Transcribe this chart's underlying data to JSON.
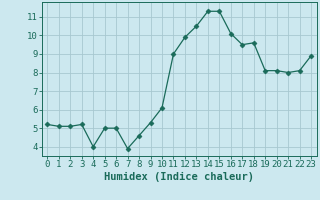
{
  "x": [
    0,
    1,
    2,
    3,
    4,
    5,
    6,
    7,
    8,
    9,
    10,
    11,
    12,
    13,
    14,
    15,
    16,
    17,
    18,
    19,
    20,
    21,
    22,
    23
  ],
  "y": [
    5.2,
    5.1,
    5.1,
    5.2,
    4.0,
    5.0,
    5.0,
    3.9,
    4.6,
    5.3,
    6.1,
    9.0,
    9.9,
    10.5,
    11.3,
    11.3,
    10.1,
    9.5,
    9.6,
    8.1,
    8.1,
    8.0,
    8.1,
    8.9
  ],
  "line_color": "#1a6b5a",
  "marker": "D",
  "marker_size": 2.5,
  "bg_color": "#cce8ef",
  "grid_color": "#a8c8d0",
  "xlabel": "Humidex (Indice chaleur)",
  "ylim": [
    3.5,
    11.8
  ],
  "xlim": [
    -0.5,
    23.5
  ],
  "yticks": [
    4,
    5,
    6,
    7,
    8,
    9,
    10,
    11
  ],
  "xticks": [
    0,
    1,
    2,
    3,
    4,
    5,
    6,
    7,
    8,
    9,
    10,
    11,
    12,
    13,
    14,
    15,
    16,
    17,
    18,
    19,
    20,
    21,
    22,
    23
  ],
  "tick_label_fontsize": 6.5,
  "xlabel_fontsize": 7.5
}
